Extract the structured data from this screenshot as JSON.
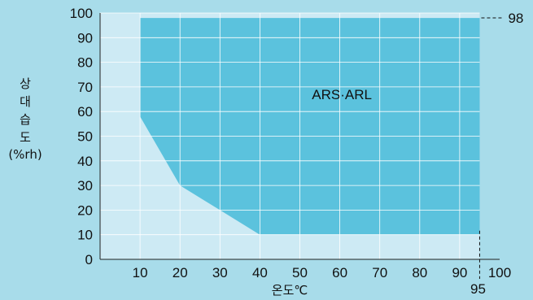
{
  "chart_data": {
    "type": "area",
    "title": "",
    "xlabel": "온도℃",
    "ylabel_lines": [
      "상",
      "대",
      "습",
      "도",
      "(%rh)"
    ],
    "xlim": [
      0,
      100
    ],
    "ylim": [
      0,
      100
    ],
    "x_ticks": [
      10,
      20,
      30,
      40,
      50,
      60,
      70,
      80,
      90,
      100
    ],
    "y_ticks": [
      0,
      10,
      20,
      30,
      40,
      50,
      60,
      70,
      80,
      90,
      100
    ],
    "grid": true,
    "series": [
      {
        "name": "ARS·ARL",
        "polygon": [
          [
            10,
            98
          ],
          [
            95,
            98
          ],
          [
            95,
            10
          ],
          [
            40,
            10
          ],
          [
            30,
            20
          ],
          [
            20,
            30
          ],
          [
            10,
            58
          ]
        ],
        "color": "#5bc2dd"
      }
    ],
    "envelope": [
      [
        0,
        100
      ],
      [
        95,
        100
      ],
      [
        95,
        0
      ],
      [
        0,
        0
      ]
    ],
    "annotations": [
      {
        "text": "98",
        "x": 95,
        "y": 98,
        "type": "y-callout"
      },
      {
        "text": "95",
        "x": 95,
        "y": 10,
        "type": "x-callout"
      }
    ],
    "colors": {
      "background": "#a8dcea",
      "envelope": "#cdeaf4",
      "region": "#5bc2dd",
      "grid": "#ffffff"
    }
  }
}
